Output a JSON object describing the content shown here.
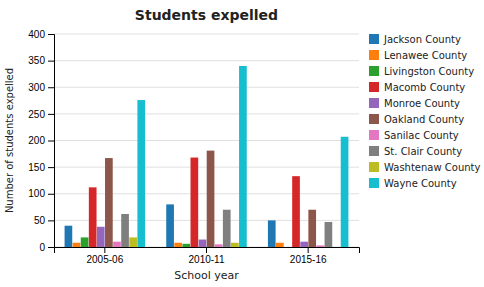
{
  "chart_data": {
    "type": "bar",
    "title": "Students expelled",
    "xlabel": "School year",
    "ylabel": "Number of students expelled",
    "categories": [
      "2005-06",
      "2010-11",
      "2015-16"
    ],
    "series": [
      {
        "name": "Jackson County",
        "values": [
          40,
          80,
          50
        ]
      },
      {
        "name": "Lenawee County",
        "values": [
          8,
          8,
          8
        ]
      },
      {
        "name": "Livingston County",
        "values": [
          18,
          6,
          0
        ]
      },
      {
        "name": "Macomb County",
        "values": [
          112,
          168,
          133
        ]
      },
      {
        "name": "Monroe County",
        "values": [
          38,
          14,
          10
        ]
      },
      {
        "name": "Oakland County",
        "values": [
          167,
          181,
          70
        ]
      },
      {
        "name": "Sanilac County",
        "values": [
          10,
          5,
          3
        ]
      },
      {
        "name": "St. Clair County",
        "values": [
          62,
          70,
          47
        ]
      },
      {
        "name": "Washtenaw County",
        "values": [
          18,
          8,
          0
        ]
      },
      {
        "name": "Wayne County",
        "values": [
          276,
          340,
          207
        ]
      }
    ],
    "ylim": [
      0,
      400
    ],
    "yticks": [
      0,
      50,
      100,
      150,
      200,
      250,
      300,
      350,
      400
    ],
    "grid": true,
    "legend": "right"
  }
}
